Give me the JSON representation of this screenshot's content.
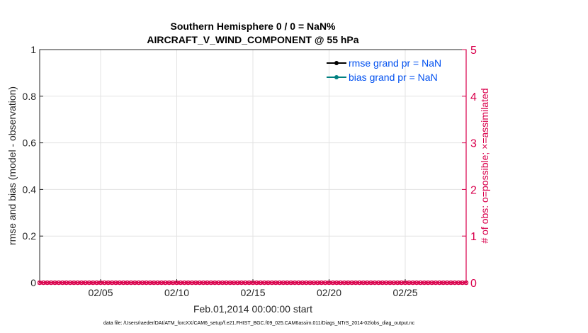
{
  "chart_data": {
    "type": "line",
    "title": [
      "Southern Hemisphere 0 / 0 = NaN%",
      "AIRCRAFT_V_WIND_COMPONENT @ 55 hPa"
    ],
    "xlabel": "Feb.01,2014 00:00:00 start",
    "ylabel": "rmse and bias (model - observation)",
    "y2label": "# of obs: o=possible; ×=assimilated",
    "xlim": [
      "2014-02-01",
      "2014-03-01"
    ],
    "ylim": [
      0,
      1
    ],
    "y2lim": [
      0,
      5
    ],
    "x_ticks": [
      "02/05",
      "02/10",
      "02/15",
      "02/20",
      "02/25"
    ],
    "x_tick_days": [
      5,
      10,
      15,
      20,
      25
    ],
    "y_ticks": [
      "0",
      "0.2",
      "0.4",
      "0.6",
      "0.8",
      "1"
    ],
    "y2_ticks": [
      "0",
      "1",
      "2",
      "3",
      "4",
      "5"
    ],
    "grid": true,
    "legend_position": "top-right",
    "series": [
      {
        "name": "rmse grand pr = NaN",
        "color": "#000000",
        "values": []
      },
      {
        "name": "bias grand pr = NaN",
        "color": "#008080",
        "values": []
      },
      {
        "name": "",
        "axis": "right",
        "color": "#D9004C",
        "marker": "o/x",
        "interval_hours": 6,
        "value": 0
      }
    ],
    "legend_text_color": "#0050F0",
    "footnote": "data file: /Users/raeder/DAI/ATM_forcXX/CAM6_setup/f.e21.FHIST_BGC.f09_025.CAM6assim.011/Diags_NTrS_2014-02/obs_diag_output.nc"
  }
}
